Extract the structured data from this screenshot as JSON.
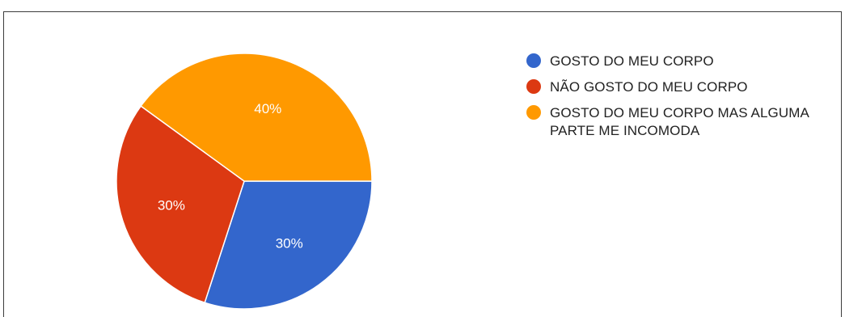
{
  "chart_data": {
    "type": "pie",
    "title": "",
    "slices": [
      {
        "label": "GOSTO DO MEU CORPO",
        "value": 30,
        "display": "30%",
        "color": "#3366CC"
      },
      {
        "label": "NÃO GOSTO DO MEU CORPO",
        "value": 30,
        "display": "30%",
        "color": "#DC3912"
      },
      {
        "label": "GOSTO DO MEU CORPO MAS ALGUMA PARTE ME INCOMODA",
        "value": 40,
        "display": "40%",
        "color": "#FF9900"
      }
    ],
    "legend_position": "right"
  }
}
